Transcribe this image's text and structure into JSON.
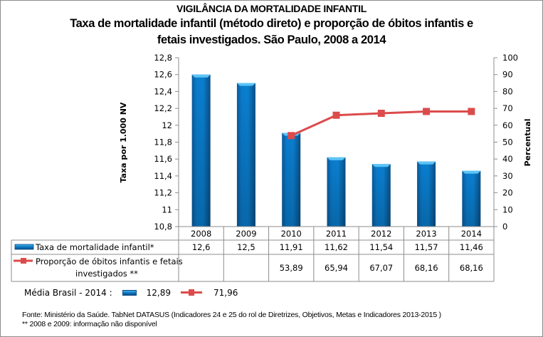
{
  "header": {
    "supertitle": "VIGILÂNCIA DA MORTALIDADE INFANTIL",
    "title_line1": "Taxa de mortalidade infantil (método direto) e proporção de óbitos infantis e",
    "title_line2": "fetais investigados. São Paulo, 2008 a 2014"
  },
  "chart_data": {
    "type": "bar+line",
    "title": "Taxa de mortalidade infantil (método direto) e proporção de óbitos infantis e fetais investigados. São Paulo, 2008 a 2014",
    "categories": [
      "2008",
      "2009",
      "2010",
      "2011",
      "2012",
      "2013",
      "2014"
    ],
    "series": [
      {
        "name": "Taxa de mortalidade infantil*",
        "type": "bar",
        "axis": "left",
        "values": [
          12.6,
          12.5,
          11.91,
          11.62,
          11.54,
          11.57,
          11.46
        ],
        "labels": [
          "12,6",
          "12,5",
          "11,91",
          "11,62",
          "11,54",
          "11,57",
          "11,46"
        ],
        "color": "#0a74c4"
      },
      {
        "name": "Proporção de óbitos infantis e fetais investigados **",
        "name_line1": "Proporção de óbitos infantis e fetais",
        "name_line2": "investigados **",
        "type": "line",
        "axis": "right",
        "values": [
          null,
          null,
          53.89,
          65.94,
          67.07,
          68.16,
          68.16
        ],
        "labels": [
          "",
          "",
          "53,89",
          "65,94",
          "67,07",
          "68,16",
          "68,16"
        ],
        "color": "#dc4b4b"
      }
    ],
    "ylabel": "Taxa por 1.000 NV",
    "ylim": [
      10.8,
      12.8
    ],
    "yticks": [
      "12,8",
      "12,6",
      "12,4",
      "12,2",
      "12",
      "11,8",
      "11,6",
      "11,4",
      "11,2",
      "11",
      "10,8"
    ],
    "y2label": "Percentual",
    "y2lim": [
      0,
      100
    ],
    "y2ticks": [
      "100",
      "90",
      "80",
      "70",
      "60",
      "50",
      "40",
      "30",
      "20",
      "10",
      "0"
    ],
    "grid": false,
    "legend": "data-table-bottom"
  },
  "media_brasil": {
    "label": "Média Brasil - 2014 :",
    "taxa": "12,89",
    "proporcao": "71,96"
  },
  "footnotes": {
    "fonte": "Fonte: Ministério da Saúde. TabNet DATASUS (Indicadores 24 e 25 do rol de Diretrizes, Objetivos, Metas e Indicadores 2013-2015 )",
    "nota": "** 2008 e 2009: informação não disponível"
  }
}
